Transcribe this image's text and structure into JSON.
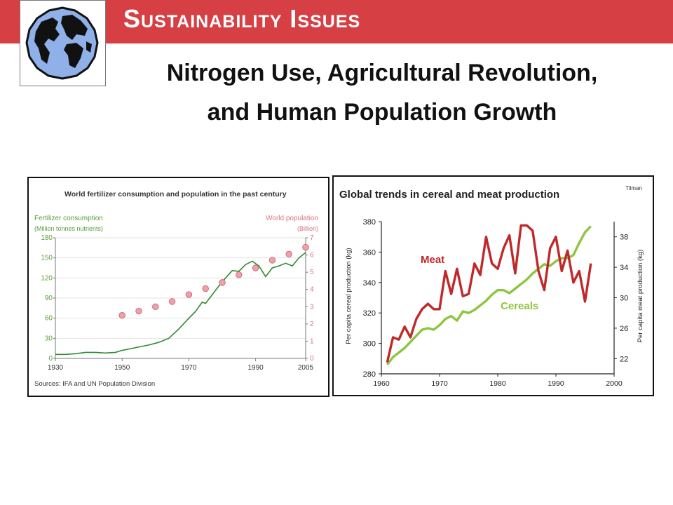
{
  "slide": {
    "title": "Sustainability Issues",
    "subtitle_line1": "Nitrogen Use, Agricultural Revolution,",
    "subtitle_line2": "and Human Population Growth"
  },
  "chart_data": [
    {
      "type": "line",
      "title": "World fertilizer consumption and population in the past century",
      "left_axis_label": "Fertilizer consumption",
      "left_axis_unit": "(Million tonnes nutrients)",
      "right_axis_label": "World population",
      "right_axis_unit": "(Billion)",
      "source": "Sources: IFA and UN Population Division",
      "x_ticks": [
        "1930",
        "1950",
        "1970",
        "1990",
        "2005"
      ],
      "x_tick_values": [
        1930,
        1950,
        1970,
        1990,
        2005
      ],
      "xlim": [
        1930,
        2005
      ],
      "ylim_left": [
        0,
        180
      ],
      "y_ticks_left": [
        "0",
        "30",
        "60",
        "90",
        "120",
        "150",
        "180"
      ],
      "ylim_right": [
        0,
        7
      ],
      "y_ticks_right": [
        "0",
        "1",
        "2",
        "3",
        "4",
        "5",
        "6",
        "7"
      ],
      "colors": {
        "fertilizer": "#2e8b2e",
        "population": "#f0a0a8",
        "population_edge": "#c0606a"
      },
      "series": [
        {
          "kind": "line",
          "axis": "left",
          "x": [
            1930,
            1933,
            1936,
            1939,
            1942,
            1945,
            1948,
            1950,
            1952,
            1955,
            1958,
            1961,
            1964,
            1967,
            1970,
            1972,
            1974,
            1975,
            1977,
            1979,
            1981,
            1983,
            1985,
            1987,
            1989,
            1991,
            1993,
            1995,
            1997,
            1999,
            2001,
            2003,
            2005
          ],
          "values": [
            6,
            6,
            7,
            9,
            9,
            8,
            9,
            12,
            14,
            17,
            20,
            24,
            30,
            44,
            60,
            70,
            84,
            82,
            95,
            108,
            120,
            131,
            130,
            140,
            145,
            138,
            122,
            135,
            138,
            142,
            138,
            150,
            158
          ]
        },
        {
          "kind": "scatter",
          "axis": "right",
          "x": [
            1950,
            1955,
            1960,
            1965,
            1970,
            1975,
            1980,
            1985,
            1990,
            1995,
            2000,
            2005
          ],
          "values": [
            2.5,
            2.75,
            3.0,
            3.3,
            3.7,
            4.05,
            4.4,
            4.85,
            5.25,
            5.7,
            6.05,
            6.45
          ]
        }
      ]
    },
    {
      "type": "line",
      "title": "Global trends in cereal and meat production",
      "credit": "Tilman",
      "ylabel_left": "Per capita cereal production (kg)",
      "ylabel_right": "Per capita meat production (kg)",
      "x_ticks": [
        "1960",
        "1970",
        "1980",
        "1990",
        "2000"
      ],
      "x_tick_values": [
        1960,
        1970,
        1980,
        1990,
        2000
      ],
      "xlim": [
        1960,
        2000
      ],
      "ylim_left": [
        280,
        380
      ],
      "y_ticks_left": [
        "280",
        "300",
        "320",
        "340",
        "360",
        "380"
      ],
      "ylim_right": [
        20,
        40
      ],
      "y_ticks_right": [
        "22",
        "26",
        "30",
        "34",
        "38"
      ],
      "colors": {
        "meat": "#c0282a",
        "cereals": "#8cc63f"
      },
      "series": [
        {
          "name": "Meat",
          "axis": "right",
          "x": [
            1961,
            1962,
            1963,
            1964,
            1965,
            1966,
            1967,
            1968,
            1969,
            1970,
            1971,
            1972,
            1973,
            1974,
            1975,
            1976,
            1977,
            1978,
            1979,
            1980,
            1981,
            1982,
            1983,
            1984,
            1985,
            1986,
            1987,
            1988,
            1989,
            1990,
            1991,
            1992,
            1993,
            1994,
            1995,
            1996
          ],
          "values": [
            21.5,
            24.8,
            24.5,
            26.2,
            24.8,
            27.2,
            28.5,
            29.2,
            28.5,
            28.5,
            33.5,
            30.5,
            33.8,
            30.2,
            30.5,
            34.5,
            33.0,
            38.0,
            34.5,
            33.8,
            36.5,
            38.2,
            33.2,
            39.5,
            39.5,
            38.8,
            33.5,
            31.0,
            36.5,
            38.0,
            33.5,
            36.2,
            32.0,
            33.5,
            29.5,
            34.5
          ]
        },
        {
          "name": "Cereals",
          "axis": "left",
          "x": [
            1961,
            1962,
            1963,
            1964,
            1965,
            1966,
            1967,
            1968,
            1969,
            1970,
            1971,
            1972,
            1973,
            1974,
            1975,
            1976,
            1977,
            1978,
            1979,
            1980,
            1981,
            1982,
            1983,
            1984,
            1985,
            1986,
            1987,
            1988,
            1989,
            1990,
            1991,
            1992,
            1993,
            1994,
            1995,
            1996
          ],
          "values": [
            286,
            291,
            294,
            297,
            301,
            305,
            309,
            310,
            309,
            312,
            316,
            318,
            315,
            321,
            320,
            322,
            325,
            328,
            332,
            335,
            335,
            333,
            336,
            339,
            342,
            346,
            349,
            352,
            351,
            354,
            356,
            356,
            358,
            366,
            373,
            377
          ]
        }
      ]
    }
  ]
}
